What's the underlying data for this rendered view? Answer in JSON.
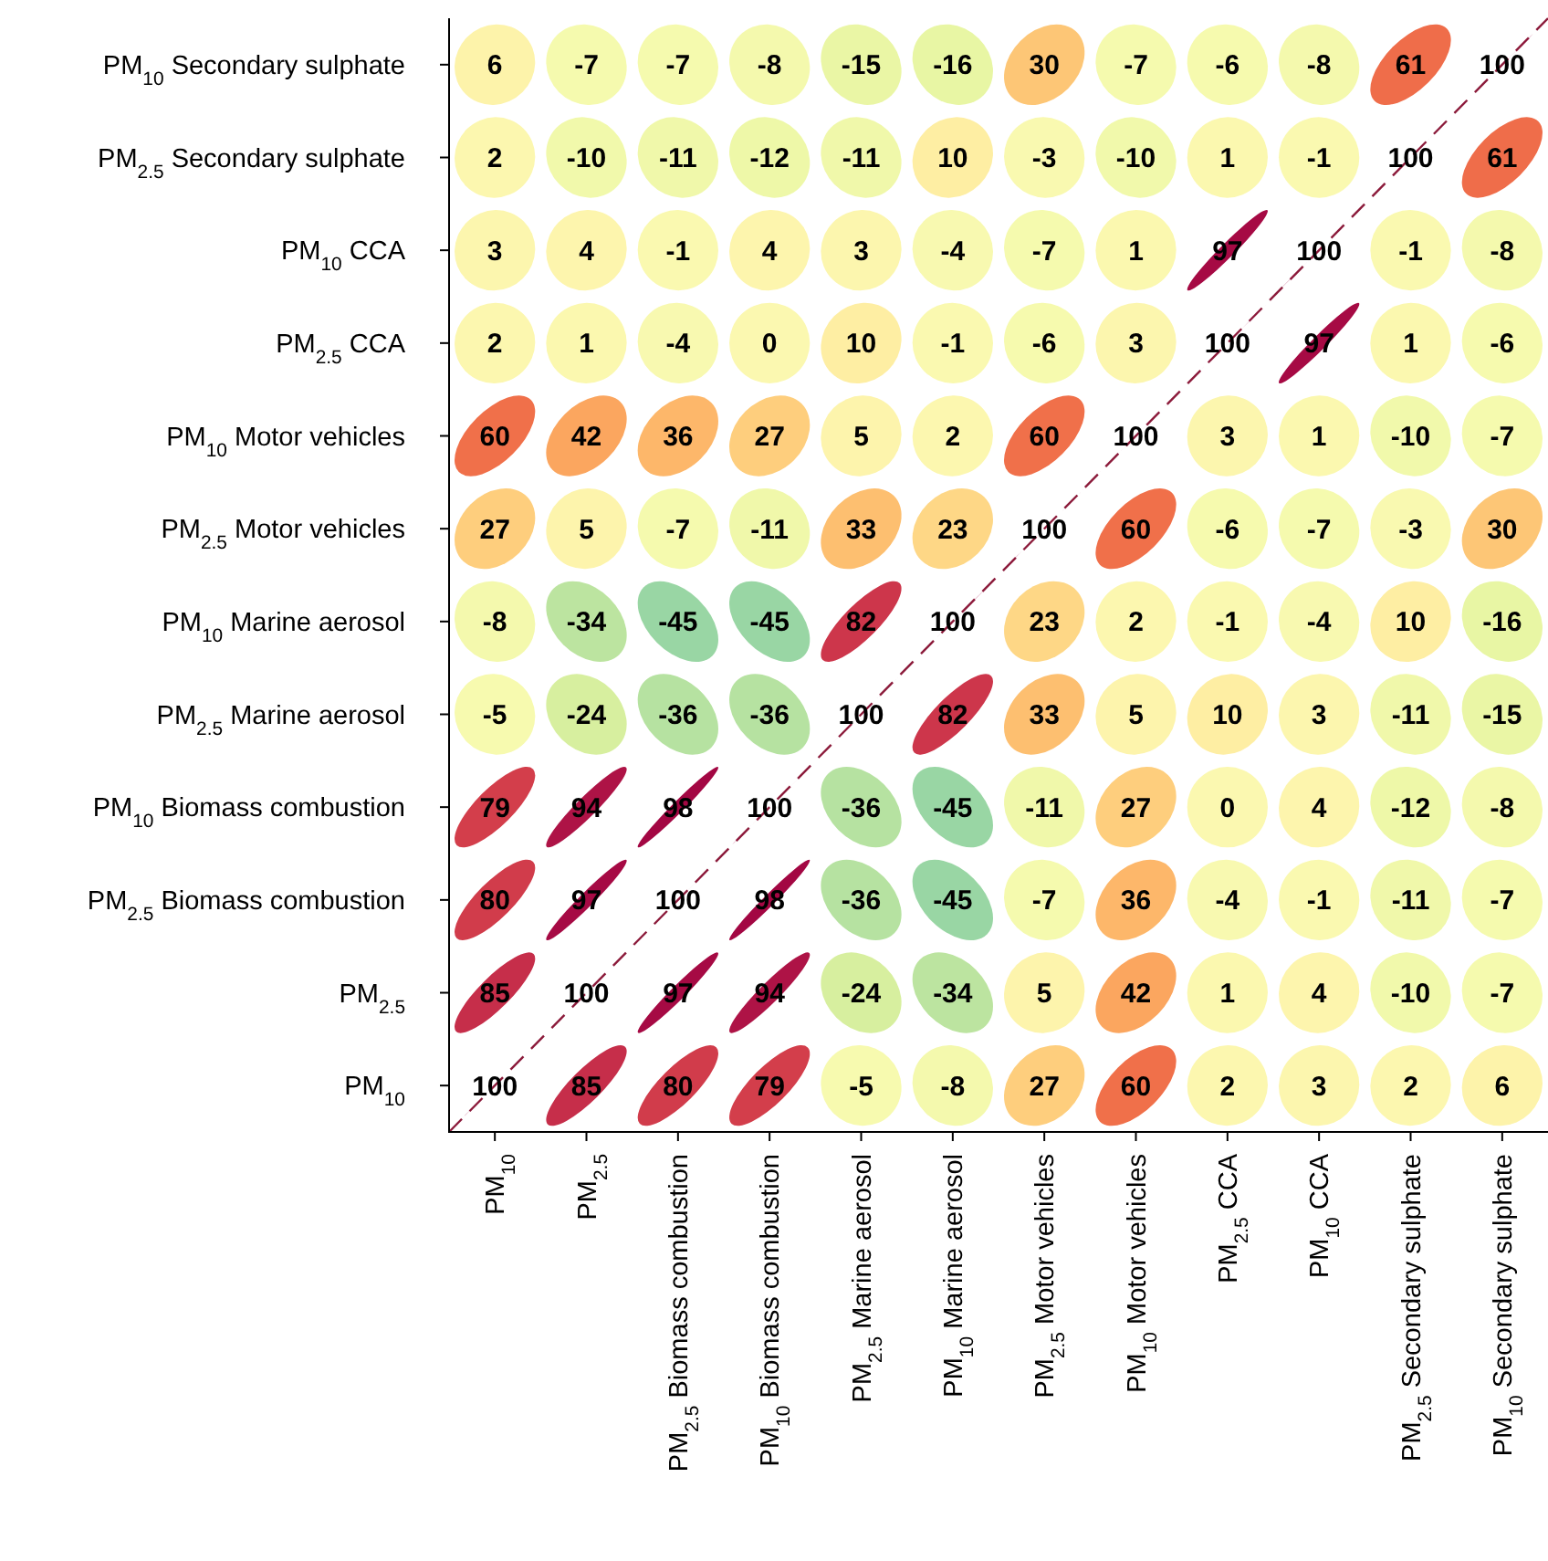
{
  "chart_data": {
    "type": "heatmap",
    "categories": [
      "PM$_{10}$",
      "PM$_{2.5}$",
      "PM$_{2.5}$ Biomass combustion",
      "PM$_{10}$ Biomass combustion",
      "PM$_{2.5}$ Marine aerosol",
      "PM$_{10}$ Marine aerosol",
      "PM$_{2.5}$ Motor vehicles",
      "PM$_{10}$ Motor vehicles",
      "PM$_{2.5}$ CCA",
      "PM$_{10}$ CCA",
      "PM$_{2.5}$ Secondary sulphate",
      "PM$_{10}$ Secondary sulphate"
    ],
    "y_categories": [
      "PM$_{10}$ Secondary sulphate",
      "PM$_{2.5}$ Secondary sulphate",
      "PM$_{10}$ CCA",
      "PM$_{2.5}$ CCA",
      "PM$_{10}$ Motor vehicles",
      "PM$_{2.5}$ Motor vehicles",
      "PM$_{10}$ Marine aerosol",
      "PM$_{2.5}$ Marine aerosol",
      "PM$_{10}$ Biomass combustion",
      "PM$_{2.5}$ Biomass combustion",
      "PM$_{2.5}$",
      "PM$_{10}$"
    ],
    "cells": [
      [
        6,
        -7,
        -7,
        -8,
        -15,
        -16,
        30,
        -7,
        -6,
        -8,
        61,
        100
      ],
      [
        2,
        -10,
        -11,
        -12,
        -11,
        10,
        -3,
        -10,
        1,
        -1,
        100,
        61
      ],
      [
        3,
        4,
        -1,
        4,
        3,
        -4,
        -7,
        1,
        97,
        100,
        -1,
        -8
      ],
      [
        2,
        1,
        -4,
        0,
        10,
        -1,
        -6,
        3,
        100,
        97,
        1,
        -6
      ],
      [
        60,
        42,
        36,
        27,
        5,
        2,
        60,
        100,
        3,
        1,
        -10,
        -7
      ],
      [
        27,
        5,
        -7,
        -11,
        33,
        23,
        100,
        60,
        -6,
        -7,
        -3,
        30
      ],
      [
        -8,
        -34,
        -45,
        -45,
        82,
        100,
        23,
        2,
        -1,
        -4,
        10,
        -16
      ],
      [
        -5,
        -24,
        -36,
        -36,
        100,
        82,
        33,
        5,
        10,
        3,
        -11,
        -15
      ],
      [
        79,
        94,
        98,
        100,
        -36,
        -45,
        -11,
        27,
        0,
        4,
        -12,
        -8
      ],
      [
        80,
        97,
        100,
        98,
        -36,
        -45,
        -7,
        36,
        -4,
        -1,
        -11,
        -7
      ],
      [
        85,
        100,
        97,
        94,
        -24,
        -34,
        5,
        42,
        1,
        4,
        -10,
        -7
      ],
      [
        100,
        85,
        80,
        79,
        -5,
        -8,
        27,
        60,
        2,
        3,
        2,
        6
      ]
    ],
    "data_labels": true
  }
}
